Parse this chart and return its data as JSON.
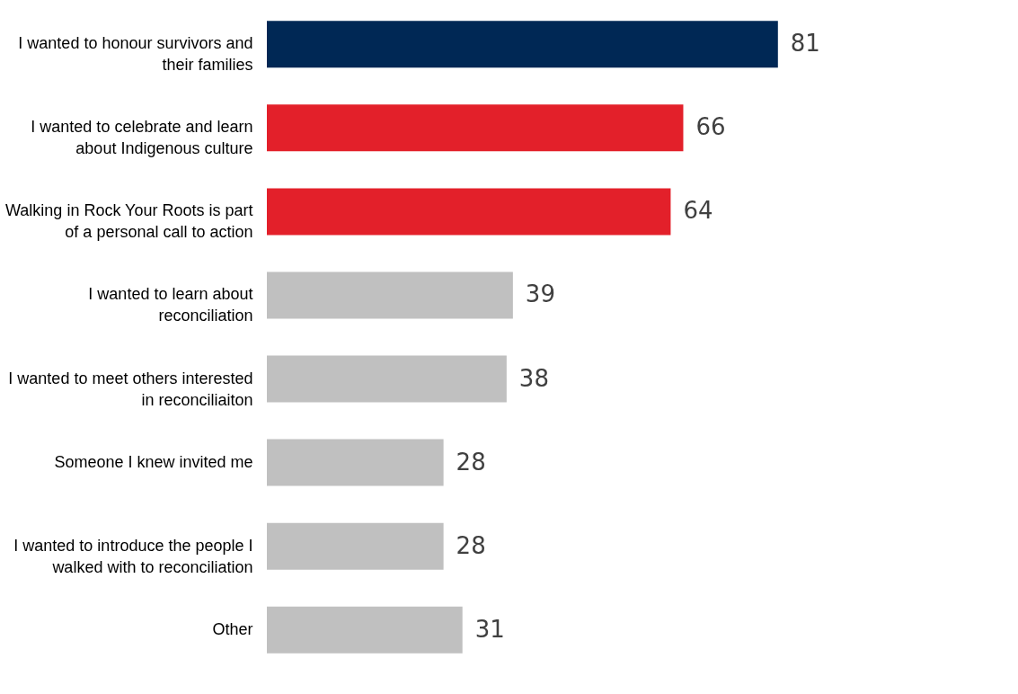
{
  "chart_data": {
    "type": "bar",
    "orientation": "horizontal",
    "data_labels": true,
    "categories": [
      "I wanted to honour survivors and their families",
      "I wanted to celebrate and learn about Indigenous culture",
      "Walking in Rock Your Roots is part of a personal call to action",
      "I wanted to learn about reconciliation",
      "I wanted to meet others interested in reconciliaiton",
      "Someone I knew invited me",
      "I wanted to introduce the people I walked with to reconciliation",
      "Other"
    ],
    "values": [
      81,
      66,
      64,
      39,
      38,
      28,
      28,
      31
    ],
    "colors": [
      "#002855",
      "#e3202a",
      "#e3202a",
      "#c0c0c0",
      "#c0c0c0",
      "#c0c0c0",
      "#c0c0c0",
      "#c0c0c0"
    ]
  }
}
